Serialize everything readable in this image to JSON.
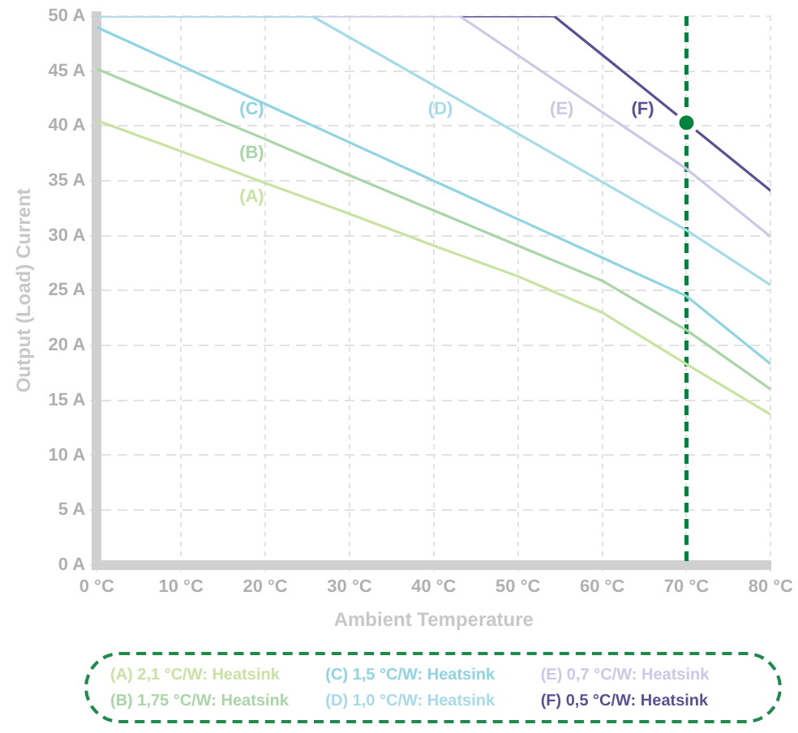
{
  "chart_data": {
    "type": "line",
    "xlabel": "Ambient Temperature",
    "ylabel": "Output (Load) Current",
    "xlim": [
      0,
      80
    ],
    "ylim": [
      0,
      50
    ],
    "xticks": [
      {
        "value": 0,
        "label": "0 °C"
      },
      {
        "value": 10,
        "label": "10 °C"
      },
      {
        "value": 20,
        "label": "20 °C"
      },
      {
        "value": 30,
        "label": "30 °C"
      },
      {
        "value": 40,
        "label": "40 °C"
      },
      {
        "value": 50,
        "label": "50 °C"
      },
      {
        "value": 60,
        "label": "60 °C"
      },
      {
        "value": 70,
        "label": "70 °C"
      },
      {
        "value": 80,
        "label": "80 °C"
      }
    ],
    "yticks": [
      {
        "value": 0,
        "label": "0 A"
      },
      {
        "value": 5,
        "label": "5 A"
      },
      {
        "value": 10,
        "label": "10 A"
      },
      {
        "value": 15,
        "label": "15 A"
      },
      {
        "value": 20,
        "label": "20 A"
      },
      {
        "value": 25,
        "label": "25 A"
      },
      {
        "value": 30,
        "label": "30 A"
      },
      {
        "value": 35,
        "label": "35 A"
      },
      {
        "value": 40,
        "label": "40 A"
      },
      {
        "value": 45,
        "label": "45 A"
      },
      {
        "value": 50,
        "label": "50 A"
      }
    ],
    "grid": true,
    "legend": "bottom",
    "marker": "none",
    "line_style": "solid",
    "series": [
      {
        "name": "(A) 2,1 °C/W: Heatsink",
        "color": "#c9e3a3",
        "x": [
          0,
          10,
          20,
          30,
          40,
          50,
          60,
          70,
          80
        ],
        "values": [
          40.5,
          37.7,
          34.8,
          32,
          29.1,
          26.3,
          23,
          18.3,
          13.7
        ]
      },
      {
        "name": "(B) 1,75 °C/W: Heatsink",
        "color": "#a9d6a6",
        "x": [
          0,
          10,
          20,
          30,
          40,
          50,
          60,
          70,
          80
        ],
        "values": [
          45.2,
          42,
          38.8,
          35.5,
          32.3,
          29.1,
          25.9,
          21.4,
          16
        ]
      },
      {
        "name": "(C) 1,5 °C/W: Heatsink",
        "color": "#8fd4e2",
        "x": [
          0,
          10,
          20,
          30,
          40,
          50,
          60,
          70,
          80
        ],
        "values": [
          49,
          45.5,
          42,
          38.5,
          35,
          31.5,
          28,
          24.5,
          18.3
        ]
      },
      {
        "name": "(D) 1,0 °C/W: Heatsink",
        "color": "#a6dbe9",
        "x": [
          0,
          25.6,
          40,
          50,
          60,
          70,
          80
        ],
        "values": [
          50,
          50,
          43.7,
          39.3,
          34.9,
          30.5,
          25.5
        ]
      },
      {
        "name": "(E) 0,7 °C/W: Heatsink",
        "color": "#cbc8e8",
        "x": [
          0,
          43.1,
          70,
          80
        ],
        "values": [
          50,
          50,
          36.1,
          29.9
        ]
      },
      {
        "name": "(F) 0,5 °C/W: Heatsink",
        "color": "#5b4f97",
        "x": [
          43.1,
          54.3,
          70,
          80
        ],
        "values": [
          50,
          50,
          40.3,
          34.1
        ]
      },
      {
        "type": "scatter",
        "marker": "circle",
        "color": "#00843d",
        "x": [
          70
        ],
        "values": [
          40.3
        ]
      }
    ],
    "ref_lines": [
      {
        "axis": "x",
        "value": 70,
        "color": "#00843d",
        "line_style": "dashed"
      }
    ],
    "annotations": [
      "(A)",
      "(B)",
      "(C)",
      "(D)",
      "(E)",
      "(F)"
    ]
  }
}
